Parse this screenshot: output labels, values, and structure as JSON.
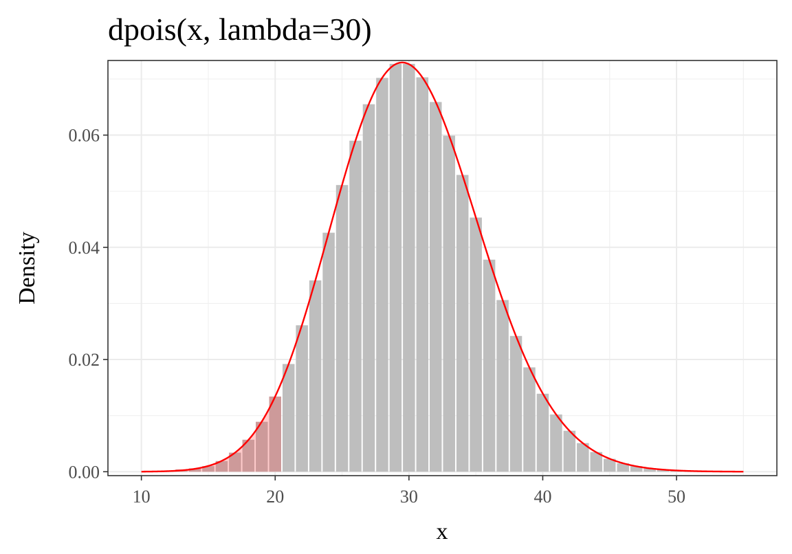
{
  "chart_data": {
    "type": "bar",
    "title": "dpois(x, lambda=30)",
    "xlabel": "x",
    "ylabel": "Density",
    "xlim": [
      7.5,
      57.5
    ],
    "ylim": [
      -0.0007,
      0.0733
    ],
    "x_ticks": [
      10,
      20,
      30,
      40,
      50
    ],
    "x_tick_labels": [
      "10",
      "20",
      "30",
      "40",
      "50"
    ],
    "x_minor_ticks": [
      15,
      25,
      35,
      45,
      55
    ],
    "y_ticks": [
      0,
      0.02,
      0.04,
      0.06
    ],
    "y_tick_labels": [
      "0.00",
      "0.02",
      "0.04",
      "0.06"
    ],
    "y_minor_ticks": [
      0.01,
      0.03,
      0.05,
      0.07
    ],
    "grid": true,
    "legend": "none",
    "lambda": 30,
    "bars": {
      "x": [
        10,
        11,
        12,
        13,
        14,
        15,
        16,
        17,
        18,
        19,
        20,
        21,
        22,
        23,
        24,
        25,
        26,
        27,
        28,
        29,
        30,
        31,
        32,
        33,
        34,
        35,
        36,
        37,
        38,
        39,
        40,
        41,
        42,
        43,
        44,
        45,
        46,
        47,
        48,
        49,
        50,
        51,
        52,
        53,
        54,
        55
      ],
      "values": [
        0.0,
        0.0001,
        0.0002,
        0.0004,
        0.0006,
        0.001,
        0.0019,
        0.0034,
        0.0057,
        0.0089,
        0.0134,
        0.0192,
        0.0261,
        0.0341,
        0.0426,
        0.0511,
        0.059,
        0.0655,
        0.0702,
        0.0727,
        0.0727,
        0.0703,
        0.0659,
        0.0599,
        0.0529,
        0.0453,
        0.0378,
        0.0306,
        0.0242,
        0.0186,
        0.0139,
        0.0102,
        0.0073,
        0.0051,
        0.0035,
        0.0023,
        0.0015,
        0.001,
        0.0006,
        0.0004,
        0.0002,
        0.0001,
        0.0001,
        0.0,
        0.0,
        0.0
      ],
      "highlight_max_x": 20,
      "bar_color": "#bebebe",
      "highlight_color": "#cd9a9a"
    },
    "curve": {
      "name": "",
      "x_start": 10,
      "x_end": 55,
      "color": "#ff0000",
      "fill_to_x": 20,
      "fill_color": "#ffcccc"
    }
  }
}
